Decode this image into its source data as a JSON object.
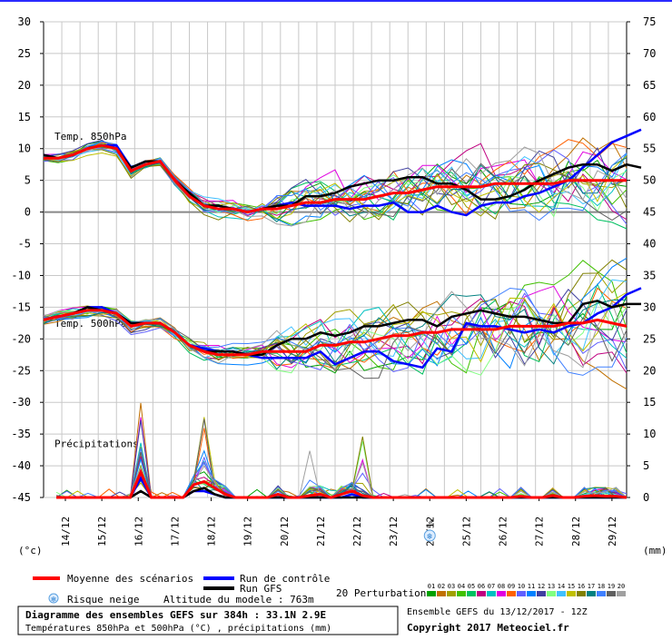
{
  "chart_data": {
    "type": "line",
    "x": [
      "14/12",
      "15/12",
      "16/12",
      "17/12",
      "18/12",
      "19/12",
      "20/12",
      "21/12",
      "22/12",
      "23/12",
      "24/12",
      "25/12",
      "26/12",
      "27/12",
      "28/12",
      "29/12"
    ],
    "left_axis": {
      "label": "(°c)",
      "ticks": [
        30,
        25,
        20,
        15,
        10,
        5,
        0,
        -5,
        -10,
        -15,
        -20,
        -25,
        -30,
        -35,
        -40,
        -45
      ],
      "range": [
        -45,
        30
      ]
    },
    "right_axis": {
      "label": "(mm)",
      "ticks": [
        75,
        70,
        65,
        60,
        55,
        50,
        45,
        40,
        35,
        30,
        25,
        20,
        15,
        10,
        5,
        0
      ],
      "range": [
        0,
        75
      ]
    },
    "panels": [
      {
        "label": "Temp. 850hPa",
        "unit": "°C"
      },
      {
        "label": "Temp. 500hPa",
        "unit": "°C"
      },
      {
        "label": "Précipitations",
        "unit": "mm"
      }
    ],
    "grid": true,
    "series": [
      {
        "name": "Moyenne des scénarios",
        "color": "#ff0000",
        "t850": [
          8.5,
          8.5,
          9,
          10,
          10.5,
          10,
          6.5,
          7.5,
          8,
          5,
          2.5,
          1,
          0.5,
          0.5,
          0,
          0.5,
          0.5,
          1,
          1.5,
          1.5,
          2,
          2,
          2,
          2.5,
          3,
          3,
          3.5,
          4,
          4,
          4,
          4,
          4.5,
          4.5,
          4.5,
          4.5,
          4.5,
          5,
          5,
          5,
          5,
          5
        ],
        "t500": [
          -17,
          -16.5,
          -16,
          -15.5,
          -15.5,
          -16,
          -18,
          -17.5,
          -17.5,
          -19,
          -21,
          -22,
          -22.5,
          -22.5,
          -22.5,
          -22,
          -22,
          -22,
          -22,
          -21,
          -21,
          -20.5,
          -20.5,
          -20,
          -19.5,
          -19.5,
          -19,
          -19,
          -18.5,
          -18.5,
          -18.5,
          -18.5,
          -18,
          -18,
          -18,
          -18,
          -17.5,
          -17.5,
          -17,
          -17.5,
          -18
        ],
        "precip": [
          0,
          0,
          0,
          0,
          0,
          0,
          0,
          0,
          4,
          0,
          0,
          0,
          0,
          2,
          2.5,
          1.5,
          0.5,
          0,
          0,
          0,
          0,
          0.5,
          0,
          0,
          0.3,
          0.5,
          0,
          0.5,
          1,
          0.3,
          0,
          0,
          0,
          0,
          0,
          0,
          0,
          0,
          0,
          0,
          0,
          0,
          0,
          0,
          0.2,
          0,
          0,
          0.3,
          0,
          0,
          0.2,
          0.3,
          0.2,
          0.2,
          0
        ]
      },
      {
        "name": "Run de contrôle",
        "color": "#0000ff",
        "t850": [
          9,
          8.5,
          9,
          10,
          10.5,
          10.5,
          7,
          8,
          8,
          5,
          3,
          1,
          1,
          0.5,
          0,
          0.5,
          1,
          1.5,
          1,
          1,
          1,
          0.5,
          1,
          1,
          1.5,
          0,
          0,
          1,
          0,
          -0.5,
          1,
          1.5,
          1.5,
          2.5,
          3,
          4,
          5,
          7,
          9,
          11,
          12,
          13
        ],
        "t500": [
          -17,
          -16.5,
          -16,
          -15,
          -15,
          -16,
          -17.5,
          -17.5,
          -17.5,
          -19,
          -21,
          -21.5,
          -22,
          -22,
          -22.5,
          -23,
          -23,
          -23,
          -23,
          -22,
          -24,
          -23,
          -22,
          -22,
          -23.5,
          -24,
          -24.5,
          -21.5,
          -22,
          -17.5,
          -18,
          -18,
          -18.5,
          -19,
          -18.5,
          -19,
          -18,
          -17.5,
          -16,
          -15,
          -13,
          -12
        ],
        "precip": [
          0,
          0,
          0,
          0,
          0,
          0,
          0,
          0,
          3,
          0,
          0,
          0,
          0,
          1,
          1,
          0.5,
          0,
          0,
          0,
          0,
          0,
          0,
          0,
          0,
          0,
          0,
          0,
          0,
          0.5,
          0,
          0,
          0,
          0,
          0,
          0,
          0,
          0,
          0,
          0,
          0,
          0,
          0,
          0,
          0,
          0,
          0,
          0,
          0,
          0,
          0,
          0,
          0,
          0,
          0,
          0
        ]
      },
      {
        "name": "Run GFS",
        "color": "#000000",
        "t850": [
          9,
          8.5,
          9,
          10,
          10.5,
          10,
          7,
          8,
          8,
          5,
          3,
          1,
          1,
          0.5,
          0,
          0.5,
          1,
          1,
          2.5,
          2.5,
          3,
          4,
          4.5,
          5,
          5,
          5.5,
          5.5,
          4.5,
          4.5,
          3.5,
          2,
          2,
          2.5,
          3.5,
          5,
          6,
          7,
          7.5,
          7.5,
          6.5,
          7.5,
          7
        ],
        "t500": [
          -17,
          -16.5,
          -16,
          -15,
          -15.5,
          -16,
          -17.5,
          -17.5,
          -17.5,
          -19,
          -21,
          -22,
          -22,
          -22,
          -22.5,
          -22.5,
          -21,
          -20,
          -20,
          -19,
          -19.5,
          -19,
          -18,
          -18,
          -17.5,
          -17,
          -17,
          -18,
          -16.5,
          -16,
          -15.5,
          -16,
          -16.5,
          -16.5,
          -17,
          -17.5,
          -17.5,
          -14.5,
          -14,
          -15,
          -14.5,
          -14.5
        ],
        "precip": [
          0,
          0,
          0,
          0,
          0,
          0,
          0,
          0,
          1,
          0,
          0,
          0,
          0,
          1,
          1.5,
          0.5,
          0,
          0,
          0,
          0,
          0,
          0,
          0,
          0,
          0,
          0,
          0,
          0,
          0,
          0,
          0,
          0,
          0,
          0,
          0,
          0,
          0,
          0,
          0,
          0,
          0,
          0,
          0,
          0,
          0,
          0,
          0,
          0,
          0,
          0,
          0,
          0,
          0,
          0,
          0
        ]
      }
    ]
  },
  "legend": {
    "mean_label": "Moyenne des scénarios",
    "control_label": "Run de contrôle",
    "gfs_label": "Run GFS",
    "snow_label": "Risque neige",
    "altitude_label": "Altitude du modele : 763m",
    "perturbations_label": "20 Perturbations",
    "perturbation_numbers": [
      "01",
      "02",
      "03",
      "04",
      "05",
      "06",
      "07",
      "08",
      "09",
      "10",
      "11",
      "12",
      "13",
      "14",
      "15",
      "16",
      "17",
      "18",
      "19",
      "20"
    ],
    "perturbation_colors": [
      "#00a000",
      "#c07000",
      "#a0a000",
      "#40c000",
      "#00c060",
      "#c00080",
      "#00c0c0",
      "#e000e0",
      "#ff6000",
      "#6060ff",
      "#0080ff",
      "#4040a0",
      "#80ff80",
      "#40c0ff",
      "#c0c000",
      "#808000",
      "#008080",
      "#4080ff",
      "#606060",
      "#a0a0a0"
    ]
  },
  "snow_marker_label": "5%",
  "footer": {
    "title": "Diagramme des ensembles GEFS sur 384h : 33.1N 2.9E",
    "subtitle": "Températures 850hPa et 500hPa (°C) , précipitations (mm)",
    "run": "Ensemble GEFS du 13/12/2017 - 12Z",
    "copyright": "Copyright 2017 Meteociel.fr"
  }
}
